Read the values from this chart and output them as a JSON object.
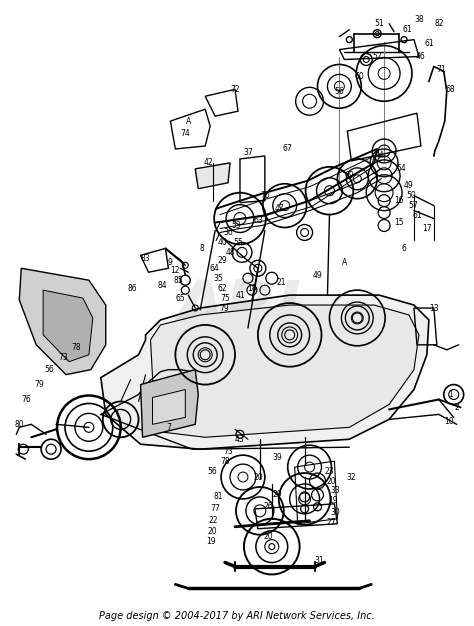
{
  "footer": "Page design © 2004-2017 by ARI Network Services, Inc.",
  "footer_fontsize": 7,
  "background_color": "#ffffff",
  "fig_width": 4.74,
  "fig_height": 6.26,
  "dpi": 100,
  "watermark": "ARI",
  "watermark_alpha": 0.08
}
